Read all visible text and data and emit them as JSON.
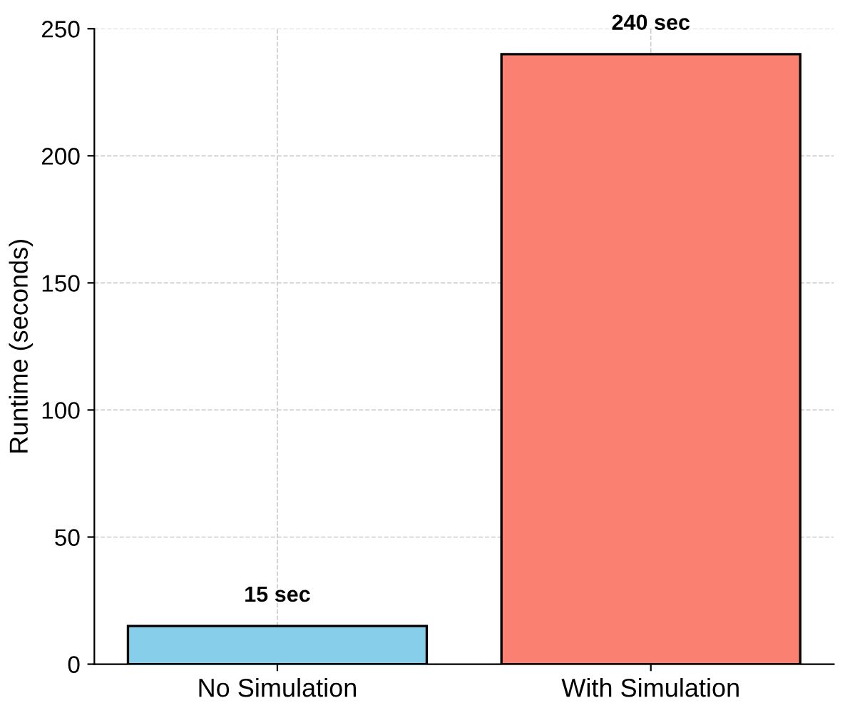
{
  "chart_data": {
    "type": "bar",
    "ylabel": "Runtime (seconds)",
    "categories": [
      "No Simulation",
      "With Simulation"
    ],
    "values": [
      15,
      240
    ],
    "colors": [
      "#87ceeb",
      "#fa8072"
    ],
    "value_labels": [
      "15 sec",
      "240 sec"
    ],
    "ylim": [
      0,
      250
    ],
    "yticks": [
      0,
      50,
      100,
      150,
      200,
      250
    ],
    "grid": true
  }
}
